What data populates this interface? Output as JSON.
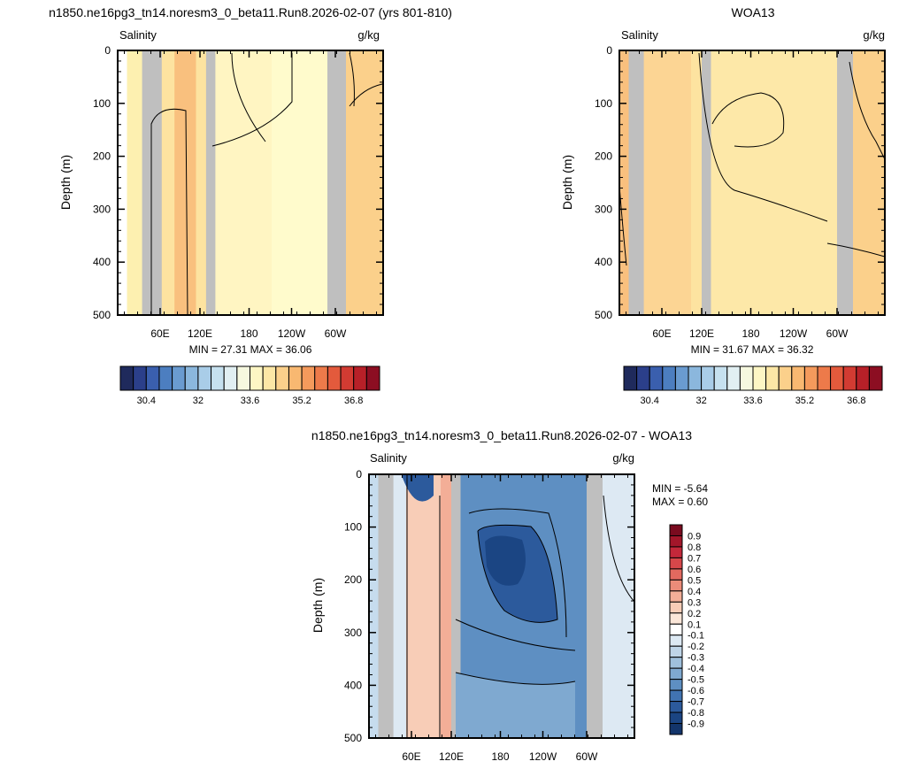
{
  "chart_data": [
    {
      "type": "contour",
      "title": "n1850.ne16pg3_tn14.noresm3_0_beta11.Run8.2026-02-07 (yrs 801-810)",
      "left_label": "Salinity",
      "right_label": "g/kg",
      "ylabel": "Depth (m)",
      "ylim": [
        0,
        500
      ],
      "y_reversed": true,
      "yticks": [
        0,
        100,
        200,
        300,
        400,
        500
      ],
      "xticks": [
        "60E",
        "120E",
        "180",
        "120W",
        "60W"
      ],
      "stats": "MIN =  27.31  MAX =  36.06",
      "colorbar": {
        "orientation": "horizontal",
        "labels": [
          "30.4",
          "32",
          "33.6",
          "35.2",
          "36.8"
        ],
        "colors": [
          "#1f2a5c",
          "#2b3f8a",
          "#3a5fae",
          "#4c7ec0",
          "#6a9bd0",
          "#8bb7dd",
          "#a9cde8",
          "#c6e1ef",
          "#e1eff2",
          "#f6f8df",
          "#fdf6c4",
          "#fce7a6",
          "#fbd08b",
          "#f8b871",
          "#f49a5c",
          "#ed7a4a",
          "#e35a3c",
          "#d23b32",
          "#b72028",
          "#8c0e22"
        ]
      },
      "regions": [
        {
          "x0": 0.035,
          "x1": 0.092,
          "color": "#fdf0b0"
        },
        {
          "x0": 0.092,
          "x1": 0.166,
          "color": "#bfbfbf"
        },
        {
          "x0": 0.166,
          "x1": 0.214,
          "color": "#fde3a0"
        },
        {
          "x0": 0.214,
          "x1": 0.295,
          "color": "#f9c07e"
        },
        {
          "x0": 0.295,
          "x1": 0.333,
          "color": "#fde3a0"
        },
        {
          "x0": 0.333,
          "x1": 0.368,
          "color": "#bfbfbf"
        },
        {
          "x0": 0.368,
          "x1": 0.58,
          "color": "#fff5c2"
        },
        {
          "x0": 0.58,
          "x1": 0.79,
          "color": "#fffbcc"
        },
        {
          "x0": 0.79,
          "x1": 0.86,
          "color": "#bfbfbf"
        },
        {
          "x0": 0.86,
          "x1": 1.0,
          "color": "#fbd08b"
        }
      ]
    },
    {
      "type": "contour",
      "title": "WOA13",
      "left_label": "Salinity",
      "right_label": "g/kg",
      "ylabel": "Depth (m)",
      "ylim": [
        0,
        500
      ],
      "y_reversed": true,
      "yticks": [
        0,
        100,
        200,
        300,
        400,
        500
      ],
      "xticks": [
        "60E",
        "120E",
        "180",
        "120W",
        "60W"
      ],
      "stats": "MIN =  31.67  MAX =  36.32",
      "colorbar": {
        "orientation": "horizontal",
        "labels": [
          "30.4",
          "32",
          "33.6",
          "35.2",
          "36.8"
        ],
        "colors": [
          "#1f2a5c",
          "#2b3f8a",
          "#3a5fae",
          "#4c7ec0",
          "#6a9bd0",
          "#8bb7dd",
          "#a9cde8",
          "#c6e1ef",
          "#e1eff2",
          "#f6f8df",
          "#fdf6c4",
          "#fce7a6",
          "#fbd08b",
          "#f8b871",
          "#f49a5c",
          "#ed7a4a",
          "#e35a3c",
          "#d23b32",
          "#b72028",
          "#8c0e22"
        ]
      },
      "regions": [
        {
          "x0": 0.0,
          "x1": 0.035,
          "color": "#f9c07e"
        },
        {
          "x0": 0.035,
          "x1": 0.092,
          "color": "#bfbfbf"
        },
        {
          "x0": 0.092,
          "x1": 0.27,
          "color": "#fcd594"
        },
        {
          "x0": 0.27,
          "x1": 0.31,
          "color": "#fde3a0"
        },
        {
          "x0": 0.31,
          "x1": 0.345,
          "color": "#bfbfbf"
        },
        {
          "x0": 0.345,
          "x1": 0.82,
          "color": "#fde8a8"
        },
        {
          "x0": 0.82,
          "x1": 0.88,
          "color": "#bfbfbf"
        },
        {
          "x0": 0.88,
          "x1": 1.0,
          "color": "#fbd08b"
        }
      ]
    },
    {
      "type": "contour",
      "title": "n1850.ne16pg3_tn14.noresm3_0_beta11.Run8.2026-02-07 - WOA13",
      "left_label": "Salinity",
      "right_label": "g/kg",
      "ylabel": "Depth (m)",
      "ylim": [
        0,
        500
      ],
      "y_reversed": true,
      "yticks": [
        0,
        100,
        200,
        300,
        400,
        500
      ],
      "xticks": [
        "60E",
        "120E",
        "180",
        "120W",
        "60W"
      ],
      "stats_min": "MIN =  -5.64",
      "stats_max": "MAX =   0.60",
      "colorbar": {
        "orientation": "vertical",
        "labels": [
          "0.9",
          "0.8",
          "0.7",
          "0.6",
          "0.5",
          "0.4",
          "0.3",
          "0.2",
          "0.1",
          "-0.1",
          "-0.2",
          "-0.3",
          "-0.4",
          "-0.5",
          "-0.6",
          "-0.7",
          "-0.8",
          "-0.9"
        ],
        "colors": [
          "#7a0b1f",
          "#a3162a",
          "#c3283a",
          "#d6474a",
          "#e2695f",
          "#ec8c79",
          "#f3ae97",
          "#f8cdb7",
          "#fbe6d8",
          "#ffffff",
          "#dde9f3",
          "#bfd5e8",
          "#9fc0dc",
          "#7fa9d0",
          "#5e8fc2",
          "#4173b1",
          "#2c5a9c",
          "#1b4583",
          "#13356b"
        ]
      },
      "regions": [
        {
          "x0": 0.0,
          "x1": 0.035,
          "color": "#c6dcee"
        },
        {
          "x0": 0.035,
          "x1": 0.092,
          "color": "#bfbfbf"
        },
        {
          "x0": 0.092,
          "x1": 0.14,
          "color": "#dde9f3"
        },
        {
          "x0": 0.14,
          "x1": 0.27,
          "color": "#f8cdb7"
        },
        {
          "x0": 0.27,
          "x1": 0.31,
          "color": "#f3ae97"
        },
        {
          "x0": 0.31,
          "x1": 0.345,
          "color": "#bfbfbf"
        },
        {
          "x0": 0.345,
          "x1": 0.82,
          "color": "#5e8fc2"
        },
        {
          "x0": 0.82,
          "x1": 0.88,
          "color": "#bfbfbf"
        },
        {
          "x0": 0.88,
          "x1": 1.0,
          "color": "#dde9f3"
        }
      ]
    }
  ]
}
